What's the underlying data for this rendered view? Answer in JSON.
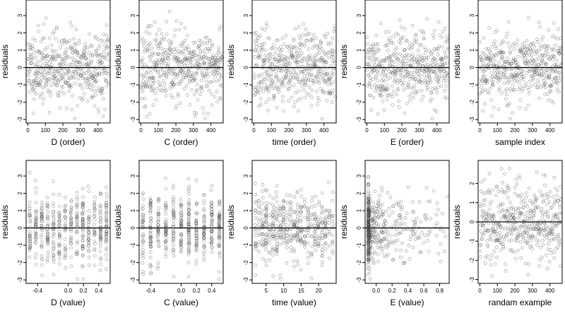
{
  "chart_data": [
    {
      "type": "scatter",
      "xlabel": "D (order)",
      "ylabel": "residuals",
      "xticks": [
        "0",
        "100",
        "200",
        "300",
        "400"
      ],
      "xtick_values": [
        0,
        100,
        200,
        300,
        400
      ],
      "xlim": [
        -10,
        470
      ],
      "ylim": [
        -3.2,
        3.9
      ],
      "yticks": [
        "-3",
        "-2",
        "-1",
        "0",
        "1",
        "2",
        "3"
      ],
      "ytick_values": [
        -3,
        -2,
        -1,
        0,
        1,
        2,
        3
      ],
      "hline": 0,
      "points": {
        "kind": "order",
        "n": 480,
        "seed": 11
      }
    },
    {
      "type": "scatter",
      "xlabel": "C (order)",
      "ylabel": "residuals",
      "xticks": [
        "0",
        "100",
        "200",
        "300",
        "400"
      ],
      "xtick_values": [
        0,
        100,
        200,
        300,
        400
      ],
      "xlim": [
        -10,
        470
      ],
      "ylim": [
        -3.2,
        3.9
      ],
      "yticks": [
        "-3",
        "-2",
        "-1",
        "0",
        "1",
        "2",
        "3"
      ],
      "ytick_values": [
        -3,
        -2,
        -1,
        0,
        1,
        2,
        3
      ],
      "hline": 0,
      "points": {
        "kind": "order",
        "n": 480,
        "seed": 23
      }
    },
    {
      "type": "scatter",
      "xlabel": "time (order)",
      "ylabel": "residuals",
      "xticks": [
        "0",
        "100",
        "200",
        "300",
        "400"
      ],
      "xtick_values": [
        0,
        100,
        200,
        300,
        400
      ],
      "xlim": [
        -10,
        470
      ],
      "ylim": [
        -3.2,
        3.9
      ],
      "yticks": [
        "-3",
        "-2",
        "-1",
        "0",
        "1",
        "2",
        "3"
      ],
      "ytick_values": [
        -3,
        -2,
        -1,
        0,
        1,
        2,
        3
      ],
      "hline": 0,
      "points": {
        "kind": "order",
        "n": 480,
        "seed": 37
      }
    },
    {
      "type": "scatter",
      "xlabel": "E (order)",
      "ylabel": "residuals",
      "xticks": [
        "0",
        "100",
        "200",
        "300",
        "400"
      ],
      "xtick_values": [
        0,
        100,
        200,
        300,
        400
      ],
      "xlim": [
        -10,
        470
      ],
      "ylim": [
        -3.2,
        3.9
      ],
      "yticks": [
        "-3",
        "-2",
        "-1",
        "0",
        "1",
        "2",
        "3"
      ],
      "ytick_values": [
        -3,
        -2,
        -1,
        0,
        1,
        2,
        3
      ],
      "hline": 0,
      "points": {
        "kind": "order",
        "n": 480,
        "seed": 41
      }
    },
    {
      "type": "scatter",
      "xlabel": "sample index",
      "ylabel": "residuals",
      "xticks": [
        "0",
        "100",
        "200",
        "300",
        "400"
      ],
      "xtick_values": [
        0,
        100,
        200,
        300,
        400
      ],
      "xlim": [
        -10,
        470
      ],
      "ylim": [
        -3.2,
        3.9
      ],
      "yticks": [
        "-3",
        "-2",
        "-1",
        "0",
        "1",
        "2",
        "3"
      ],
      "ytick_values": [
        -3,
        -2,
        -1,
        0,
        1,
        2,
        3
      ],
      "hline": 0,
      "points": {
        "kind": "order",
        "n": 480,
        "seed": 53
      }
    },
    {
      "type": "scatter",
      "xlabel": "D (value)",
      "ylabel": "residuals",
      "xticks": [
        "-0.4",
        "0.0",
        "0.2",
        "0.4"
      ],
      "xtick_values": [
        -0.4,
        0,
        0.2,
        0.4
      ],
      "xlim": [
        -0.55,
        0.55
      ],
      "ylim": [
        -3.2,
        3.9
      ],
      "yticks": [
        "-3",
        "-2",
        "-1",
        "0",
        "1",
        "2",
        "3"
      ],
      "ytick_values": [
        -3,
        -2,
        -1,
        0,
        1,
        2,
        3
      ],
      "hline": 0,
      "points": {
        "kind": "columns",
        "xmin": -0.5,
        "xmax": 0.5,
        "ncols": 14,
        "n": 480,
        "seed": 61
      }
    },
    {
      "type": "scatter",
      "xlabel": "C (value)",
      "ylabel": "residuals",
      "xticks": [
        "-0.4",
        "0.0",
        "0.2",
        "0.4"
      ],
      "xtick_values": [
        -0.4,
        0,
        0.2,
        0.4
      ],
      "xlim": [
        -0.55,
        0.55
      ],
      "ylim": [
        -3.2,
        3.9
      ],
      "yticks": [
        "-3",
        "-2",
        "-1",
        "0",
        "1",
        "2",
        "3"
      ],
      "ytick_values": [
        -3,
        -2,
        -1,
        0,
        1,
        2,
        3
      ],
      "hline": 0,
      "points": {
        "kind": "columns",
        "xmin": -0.5,
        "xmax": 0.5,
        "ncols": 11,
        "n": 480,
        "seed": 71
      }
    },
    {
      "type": "scatter",
      "xlabel": "time (value)",
      "ylabel": "residuals",
      "xticks": [
        "5",
        "10",
        "15",
        "20"
      ],
      "xtick_values": [
        5,
        10,
        15,
        20
      ],
      "xlim": [
        1,
        25
      ],
      "ylim": [
        -3.2,
        3.9
      ],
      "yticks": [
        "-3",
        "-2",
        "-1",
        "0",
        "1",
        "2",
        "3"
      ],
      "ytick_values": [
        -3,
        -2,
        -1,
        0,
        1,
        2,
        3
      ],
      "hline": 0,
      "points": {
        "kind": "columns",
        "xmin": 2,
        "xmax": 24,
        "ncols": 23,
        "n": 480,
        "seed": 83
      }
    },
    {
      "type": "scatter",
      "xlabel": "E (value)",
      "ylabel": "residuals",
      "xticks": [
        "0.0",
        "0.2",
        "0.4",
        "0.6",
        "0.8"
      ],
      "xtick_values": [
        0,
        0.2,
        0.4,
        0.6,
        0.8
      ],
      "xlim": [
        -0.14,
        0.92
      ],
      "ylim": [
        -3.2,
        3.9
      ],
      "yticks": [
        "-3",
        "-2",
        "-1",
        "0",
        "1",
        "2",
        "3"
      ],
      "ytick_values": [
        -3,
        -2,
        -1,
        0,
        1,
        2,
        3
      ],
      "hline": 0,
      "points": {
        "kind": "skewed",
        "xmin": -0.1,
        "xmax": 0.9,
        "n": 480,
        "seed": 97
      }
    },
    {
      "type": "scatter",
      "xlabel": "randam example",
      "ylabel": "residuals",
      "xticks": [
        "0",
        "100",
        "200",
        "300",
        "400"
      ],
      "xtick_values": [
        0,
        100,
        200,
        300,
        400
      ],
      "xlim": [
        -10,
        470
      ],
      "ylim": [
        -3.2,
        3.2
      ],
      "yticks": [
        "-3",
        "-2",
        "-1",
        "0",
        "1",
        "2"
      ],
      "ytick_values": [
        -3,
        -2,
        -1,
        0,
        1,
        2
      ],
      "hline": 0,
      "points": {
        "kind": "order",
        "n": 480,
        "seed": 103
      }
    }
  ],
  "style": {
    "point_color": "#444444",
    "point_opacity": 0.55,
    "line_color": "#000000"
  }
}
